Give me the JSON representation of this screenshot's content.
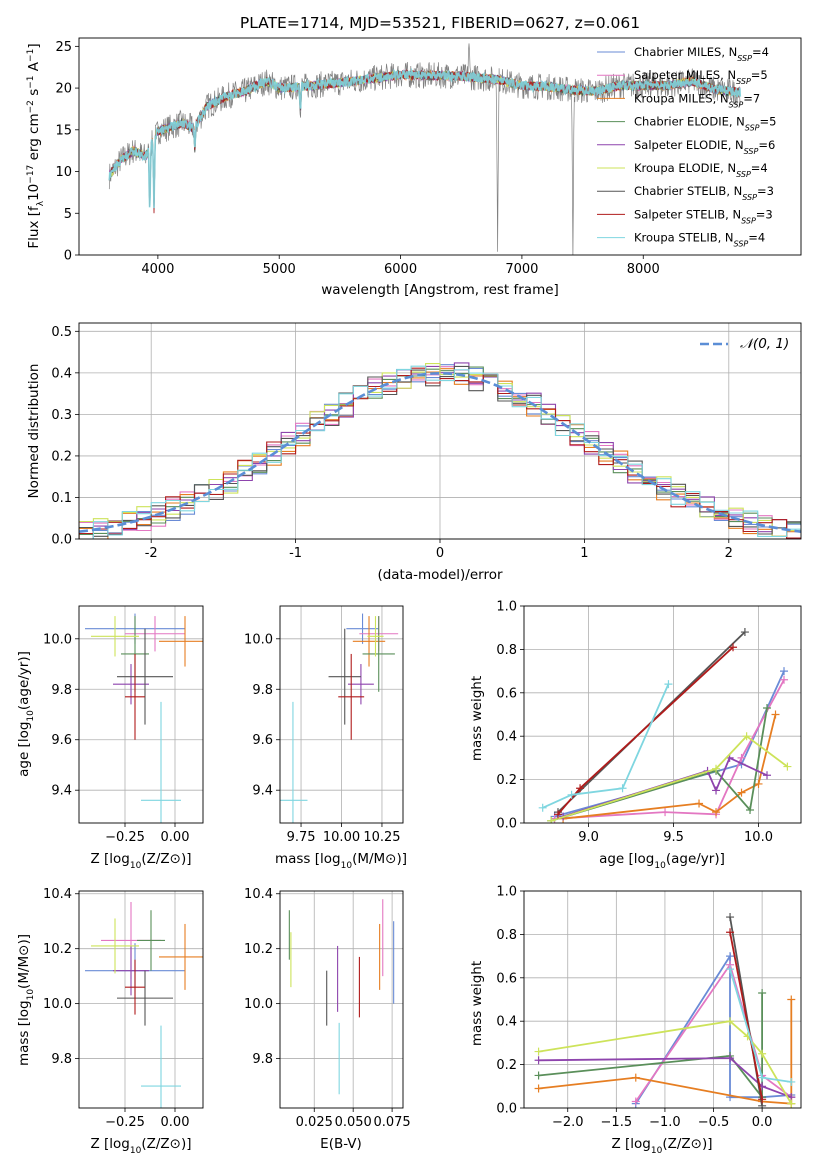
{
  "figure": {
    "title": "PLATE=1714, MJD=53521, FIBERID=0627, z=0.061"
  },
  "colors": {
    "chabrier_miles": "#6a8bd6",
    "salpeter_miles": "#e377c2",
    "kroupa_miles": "#e67e22",
    "chabrier_elodie": "#5a8f5a",
    "salpeter_elodie": "#8e44ad",
    "kroupa_elodie": "#cde35a",
    "chabrier_stelib": "#555555",
    "salpeter_stelib": "#b01c1c",
    "kroupa_stelib": "#7fd6e0",
    "data": "#808080"
  },
  "chart_data": [
    {
      "id": "spectrum",
      "type": "line",
      "xlabel": "wavelength [Angstrom, rest frame]",
      "ylabel_main": "Flux [f",
      "ylabel_lambda": "λ",
      "ylabel_rest": "10",
      "ylabel_exp1": "−17",
      "ylabel_mid": " erg cm",
      "ylabel_exp2": "−2",
      "ylabel_mid2": " s",
      "ylabel_exp3": "−1",
      "ylabel_end": " A",
      "ylabel_exp4": "−1",
      "ylabel_close": "]",
      "xlim": [
        3350,
        9300
      ],
      "ylim": [
        0,
        26
      ],
      "xticks": [
        4000,
        5000,
        6000,
        7000,
        8000
      ],
      "yticks": [
        0,
        5,
        10,
        15,
        20,
        25
      ],
      "legend_position": "right",
      "anchor_x": [
        3600,
        3700,
        3800,
        3900,
        4000,
        4100,
        4200,
        4300,
        4400,
        4500,
        4600,
        4700,
        4800,
        4900,
        5000,
        5200,
        5400,
        5600,
        5800,
        6000,
        6200,
        6400,
        6600,
        6800,
        7000,
        7200,
        7400,
        7600,
        7800,
        8000,
        8200,
        8400,
        8600,
        8800
      ],
      "anchor_y": [
        9.5,
        11.5,
        12.5,
        11.8,
        14.8,
        15.3,
        15.8,
        15.2,
        17.8,
        18.5,
        19.2,
        19.5,
        20.2,
        20.8,
        20.0,
        20.2,
        20.5,
        20.8,
        21.2,
        21.6,
        21.5,
        21.5,
        21.3,
        21.0,
        20.3,
        20.2,
        19.8,
        19.6,
        20.3,
        20.3,
        20.3,
        20.8,
        19.8,
        19.5
      ],
      "dips": [
        {
          "x": 3933,
          "y": 5
        },
        {
          "x": 3968,
          "y": 5.5
        },
        {
          "x": 4305,
          "y": 12.5
        },
        {
          "x": 5175,
          "y": 17.5
        },
        {
          "x": 6563,
          "y": 26
        },
        {
          "x": 6800,
          "y": 0
        },
        {
          "x": 7420,
          "y": 0
        }
      ],
      "series": [
        {
          "name": "Chabrier MILES",
          "n": "4"
        },
        {
          "name": "Salpeter MILES",
          "n": "5"
        },
        {
          "name": "Kroupa MILES",
          "n": "7"
        },
        {
          "name": "Chabrier ELODIE",
          "n": "5"
        },
        {
          "name": "Salpeter ELODIE",
          "n": "6"
        },
        {
          "name": "Kroupa ELODIE",
          "n": "4"
        },
        {
          "name": "Chabrier STELIB",
          "n": "3"
        },
        {
          "name": "Salpeter STELIB",
          "n": "3"
        },
        {
          "name": "Kroupa STELIB",
          "n": "4"
        }
      ],
      "legend_n_label": "N",
      "legend_n_sub": "SSP"
    },
    {
      "id": "residuals",
      "type": "histogram",
      "xlabel": "(data-model)/error",
      "ylabel": "Normed distribution",
      "xlim": [
        -2.5,
        2.5
      ],
      "ylim": [
        0,
        0.52
      ],
      "xticks": [
        -2,
        -1,
        0,
        1,
        2
      ],
      "yticks": [
        0.0,
        0.1,
        0.2,
        0.3,
        0.4,
        0.5
      ],
      "bin_width": 0.1,
      "legend": "𝒩(0, 1)",
      "legend_position": "upper right"
    },
    {
      "id": "age_vs_Z",
      "type": "scatter",
      "xlabel": "Z [log10(Z/Z⊙)]",
      "ylabel": "age  [log10(age/yr)]",
      "xlim": [
        -0.48,
        0.14
      ],
      "ylim": [
        9.27,
        10.13
      ],
      "xticks": [
        -0.25,
        0.0
      ],
      "xtick_labels": [
        "−0.25",
        "0.00"
      ],
      "yticks": [
        9.4,
        9.6,
        9.8,
        10.0
      ],
      "points": [
        {
          "series": "chabrier_miles",
          "x": -0.2,
          "y": 10.04,
          "xerr": 0.25,
          "yerr": 0.06
        },
        {
          "series": "salpeter_miles",
          "x": -0.1,
          "y": 10.02,
          "xerr": 0.15,
          "yerr": 0.07
        },
        {
          "series": "kroupa_miles",
          "x": 0.05,
          "y": 9.99,
          "xerr": 0.13,
          "yerr": 0.1
        },
        {
          "series": "chabrier_elodie",
          "x": -0.2,
          "y": 9.94,
          "xerr": 0.07,
          "yerr": 0.15
        },
        {
          "series": "salpeter_elodie",
          "x": -0.22,
          "y": 9.82,
          "xerr": 0.09,
          "yerr": 0.08
        },
        {
          "series": "kroupa_elodie",
          "x": -0.3,
          "y": 10.01,
          "xerr": 0.12,
          "yerr": 0.08
        },
        {
          "series": "chabrier_stelib",
          "x": -0.15,
          "y": 9.85,
          "xerr": 0.14,
          "yerr": 0.19
        },
        {
          "series": "salpeter_stelib",
          "x": -0.2,
          "y": 9.77,
          "xerr": 0.05,
          "yerr": 0.17
        },
        {
          "series": "kroupa_stelib",
          "x": -0.07,
          "y": 9.36,
          "xerr": 0.1,
          "yerr": 0.39
        }
      ]
    },
    {
      "id": "age_vs_mass",
      "type": "scatter",
      "xlabel": "mass [log10(M/M⊙)]",
      "ylabel": "",
      "xlim": [
        9.62,
        10.38
      ],
      "ylim": [
        9.27,
        10.13
      ],
      "xticks": [
        9.75,
        10.0,
        10.25
      ],
      "xtick_labels": [
        "9.75",
        "10.00",
        "10.25"
      ],
      "yticks": [
        9.4,
        9.6,
        9.8,
        10.0
      ],
      "points": [
        {
          "series": "chabrier_miles",
          "x": 10.13,
          "y": 10.04,
          "xerr": 0.1,
          "yerr": 0.06
        },
        {
          "series": "salpeter_miles",
          "x": 10.23,
          "y": 10.02,
          "xerr": 0.12,
          "yerr": 0.07
        },
        {
          "series": "kroupa_miles",
          "x": 10.17,
          "y": 9.99,
          "xerr": 0.1,
          "yerr": 0.1
        },
        {
          "series": "chabrier_elodie",
          "x": 10.23,
          "y": 9.94,
          "xerr": 0.1,
          "yerr": 0.15
        },
        {
          "series": "salpeter_elodie",
          "x": 10.12,
          "y": 9.82,
          "xerr": 0.08,
          "yerr": 0.08
        },
        {
          "series": "kroupa_elodie",
          "x": 10.21,
          "y": 10.01,
          "xerr": 0.05,
          "yerr": 0.08
        },
        {
          "series": "chabrier_stelib",
          "x": 10.02,
          "y": 9.85,
          "xerr": 0.1,
          "yerr": 0.19
        },
        {
          "series": "salpeter_stelib",
          "x": 10.06,
          "y": 9.77,
          "xerr": 0.08,
          "yerr": 0.17
        },
        {
          "series": "kroupa_stelib",
          "x": 9.7,
          "y": 9.36,
          "xerr": 0.09,
          "yerr": 0.39
        }
      ]
    },
    {
      "id": "mass_weight_vs_age",
      "type": "line",
      "xlabel": "age  [log10(age/yr)]",
      "ylabel": "mass weight",
      "xlim": [
        8.62,
        10.25
      ],
      "ylim": [
        0,
        1.0
      ],
      "xticks": [
        9.0,
        9.5,
        10.0
      ],
      "xtick_labels": [
        "9.0",
        "9.5",
        "10.0"
      ],
      "yticks": [
        0.0,
        0.2,
        0.4,
        0.6,
        0.8,
        1.0
      ],
      "series": [
        {
          "series": "chabrier_miles",
          "x": [
            8.8,
            9.9,
            10.15
          ],
          "y": [
            0.03,
            0.27,
            0.7
          ]
        },
        {
          "series": "salpeter_miles",
          "x": [
            8.8,
            9.45,
            9.75,
            9.9,
            10.15
          ],
          "y": [
            0.02,
            0.05,
            0.04,
            0.3,
            0.66
          ]
        },
        {
          "series": "kroupa_miles",
          "x": [
            8.85,
            9.65,
            9.75,
            9.9,
            10.0,
            10.1
          ],
          "y": [
            0.02,
            0.09,
            0.05,
            0.14,
            0.18,
            0.5
          ]
        },
        {
          "series": "chabrier_elodie",
          "x": [
            8.78,
            9.75,
            9.95,
            10.05
          ],
          "y": [
            0.01,
            0.24,
            0.06,
            0.53
          ]
        },
        {
          "series": "salpeter_elodie",
          "x": [
            8.85,
            9.7,
            9.75,
            9.83,
            10.05
          ],
          "y": [
            0.03,
            0.24,
            0.15,
            0.3,
            0.22
          ]
        },
        {
          "series": "kroupa_elodie",
          "x": [
            8.78,
            9.75,
            9.93,
            10.17
          ],
          "y": [
            0.01,
            0.25,
            0.4,
            0.26
          ]
        },
        {
          "series": "chabrier_stelib",
          "x": [
            8.82,
            9.92
          ],
          "y": [
            0.05,
            0.88
          ]
        },
        {
          "series": "salpeter_stelib",
          "x": [
            8.82,
            8.95,
            9.85
          ],
          "y": [
            0.04,
            0.16,
            0.81
          ]
        },
        {
          "series": "kroupa_stelib",
          "x": [
            8.73,
            8.9,
            9.2,
            9.47
          ],
          "y": [
            0.07,
            0.13,
            0.16,
            0.64
          ]
        }
      ]
    },
    {
      "id": "mass_vs_Z",
      "type": "scatter",
      "xlabel": "Z [log10(Z/Z⊙)]",
      "ylabel": "mass [log10(M/M⊙)]",
      "xlim": [
        -0.48,
        0.14
      ],
      "ylim": [
        9.62,
        10.41
      ],
      "xticks": [
        -0.25,
        0.0
      ],
      "xtick_labels": [
        "−0.25",
        "0.00"
      ],
      "yticks": [
        9.8,
        10.0,
        10.2,
        10.4
      ],
      "points": [
        {
          "series": "chabrier_miles",
          "x": -0.2,
          "y": 10.12,
          "xerr": 0.25,
          "yerr": 0.1
        },
        {
          "series": "salpeter_miles",
          "x": -0.22,
          "y": 10.23,
          "xerr": 0.15,
          "yerr": 0.14
        },
        {
          "series": "kroupa_miles",
          "x": 0.05,
          "y": 10.17,
          "xerr": 0.13,
          "yerr": 0.12
        },
        {
          "series": "chabrier_elodie",
          "x": -0.12,
          "y": 10.23,
          "xerr": 0.07,
          "yerr": 0.11
        },
        {
          "series": "salpeter_elodie",
          "x": -0.22,
          "y": 10.12,
          "xerr": 0.09,
          "yerr": 0.09
        },
        {
          "series": "kroupa_elodie",
          "x": -0.3,
          "y": 10.21,
          "xerr": 0.12,
          "yerr": 0.1
        },
        {
          "series": "chabrier_stelib",
          "x": -0.15,
          "y": 10.02,
          "xerr": 0.14,
          "yerr": 0.1
        },
        {
          "series": "salpeter_stelib",
          "x": -0.2,
          "y": 10.06,
          "xerr": 0.05,
          "yerr": 0.1
        },
        {
          "series": "kroupa_stelib",
          "x": -0.07,
          "y": 9.7,
          "xerr": 0.1,
          "yerr": 0.22
        }
      ]
    },
    {
      "id": "mass_vs_ebv",
      "type": "scatter",
      "xlabel": "E(B-V)",
      "ylabel": "",
      "xlim": [
        0.003,
        0.082
      ],
      "ylim": [
        9.62,
        10.41
      ],
      "xticks": [
        0.025,
        0.05,
        0.075
      ],
      "xtick_labels": [
        "0.025",
        "0.050",
        "0.075"
      ],
      "yticks": [
        9.8,
        10.0,
        10.2,
        10.4
      ],
      "points": [
        {
          "series": "chabrier_miles",
          "x": 0.076,
          "y": 10.15,
          "xerr": 0,
          "yerr": 0.15
        },
        {
          "series": "salpeter_miles",
          "x": 0.069,
          "y": 10.24,
          "xerr": 0,
          "yerr": 0.14
        },
        {
          "series": "kroupa_miles",
          "x": 0.067,
          "y": 10.17,
          "xerr": 0,
          "yerr": 0.12
        },
        {
          "series": "chabrier_elodie",
          "x": 0.009,
          "y": 10.25,
          "xerr": 0,
          "yerr": 0.09
        },
        {
          "series": "salpeter_elodie",
          "x": 0.04,
          "y": 10.09,
          "xerr": 0,
          "yerr": 0.12
        },
        {
          "series": "kroupa_elodie",
          "x": 0.01,
          "y": 10.16,
          "xerr": 0,
          "yerr": 0.1
        },
        {
          "series": "chabrier_stelib",
          "x": 0.033,
          "y": 10.02,
          "xerr": 0,
          "yerr": 0.1
        },
        {
          "series": "salpeter_stelib",
          "x": 0.054,
          "y": 10.06,
          "xerr": 0,
          "yerr": 0.11
        },
        {
          "series": "kroupa_stelib",
          "x": 0.041,
          "y": 9.8,
          "xerr": 0,
          "yerr": 0.13
        }
      ]
    },
    {
      "id": "mass_weight_vs_Z",
      "type": "line",
      "xlabel": "Z [log10(Z/Z⊙)]",
      "ylabel": "mass weight",
      "xlim": [
        -2.45,
        0.4
      ],
      "ylim": [
        0,
        1.0
      ],
      "xticks": [
        -2.0,
        -1.5,
        -1.0,
        -0.5,
        0.0
      ],
      "xtick_labels": [
        "−2.0",
        "−1.5",
        "−1.0",
        "−0.5",
        "0.0"
      ],
      "yticks": [
        0.0,
        0.2,
        0.4,
        0.6,
        0.8,
        1.0
      ],
      "series": [
        {
          "series": "chabrier_miles",
          "x": [
            -1.3,
            -0.33,
            -0.33,
            0.0,
            0.3
          ],
          "y": [
            0.02,
            0.7,
            0.05,
            0.05,
            0.06
          ]
        },
        {
          "series": "salpeter_miles",
          "x": [
            -1.3,
            -0.33,
            0.0,
            0.3
          ],
          "y": [
            0.03,
            0.66,
            0.15,
            0.05
          ]
        },
        {
          "series": "kroupa_miles",
          "x": [
            -2.3,
            -1.3,
            0.0,
            0.3,
            0.3
          ],
          "y": [
            0.09,
            0.14,
            0.03,
            0.02,
            0.5
          ]
        },
        {
          "series": "chabrier_elodie",
          "x": [
            -2.3,
            -0.33,
            0.0,
            0.0
          ],
          "y": [
            0.15,
            0.24,
            0.05,
            0.53
          ]
        },
        {
          "series": "salpeter_elodie",
          "x": [
            -2.3,
            -0.33,
            0.0,
            0.3
          ],
          "y": [
            0.22,
            0.23,
            0.1,
            0.05
          ]
        },
        {
          "series": "kroupa_elodie",
          "x": [
            -2.3,
            -0.33,
            -0.15,
            0.0,
            0.3
          ],
          "y": [
            0.26,
            0.4,
            0.33,
            0.25,
            0.02
          ]
        },
        {
          "series": "chabrier_stelib",
          "x": [
            -0.33,
            0.0
          ],
          "y": [
            0.88,
            0.01
          ]
        },
        {
          "series": "salpeter_stelib",
          "x": [
            -0.33,
            0.0
          ],
          "y": [
            0.81,
            0.04
          ]
        },
        {
          "series": "kroupa_stelib",
          "x": [
            -0.33,
            0.0,
            0.3
          ],
          "y": [
            0.64,
            0.14,
            0.12
          ]
        }
      ]
    }
  ]
}
